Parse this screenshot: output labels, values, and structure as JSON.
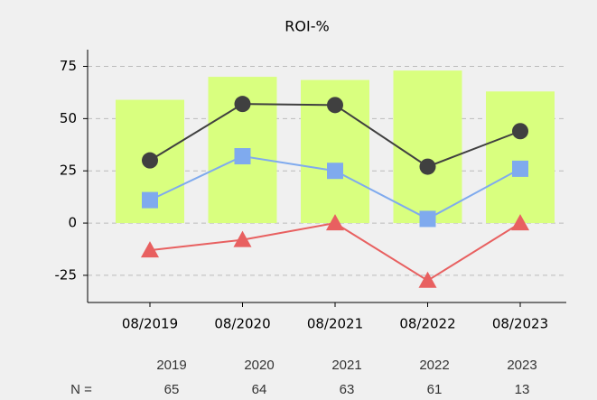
{
  "chart_data": {
    "type": "bar-line",
    "title": "ROI-%",
    "categories": [
      "08/2019",
      "08/2020",
      "08/2021",
      "08/2022",
      "08/2023"
    ],
    "bar": {
      "color": "#d9ff7f",
      "values": [
        59,
        70,
        68.5,
        73,
        63
      ]
    },
    "series": [
      {
        "color": "#404040",
        "marker": "circle",
        "values": [
          30,
          57,
          56.5,
          27,
          44
        ]
      },
      {
        "color": "#7faaee",
        "marker": "square",
        "values": [
          11,
          32,
          25,
          2,
          26
        ]
      },
      {
        "color": "#e86060",
        "marker": "triangle",
        "values": [
          -13,
          -8,
          0,
          -27.5,
          0
        ]
      }
    ],
    "ylim": [
      -38,
      83
    ],
    "yticks": [
      -25,
      0,
      25,
      50,
      75
    ],
    "grid": true
  },
  "footer_table": {
    "label": "N =",
    "years": [
      "2019",
      "2020",
      "2021",
      "2022",
      "2023"
    ],
    "counts": [
      "65",
      "64",
      "63",
      "61",
      "13"
    ]
  }
}
